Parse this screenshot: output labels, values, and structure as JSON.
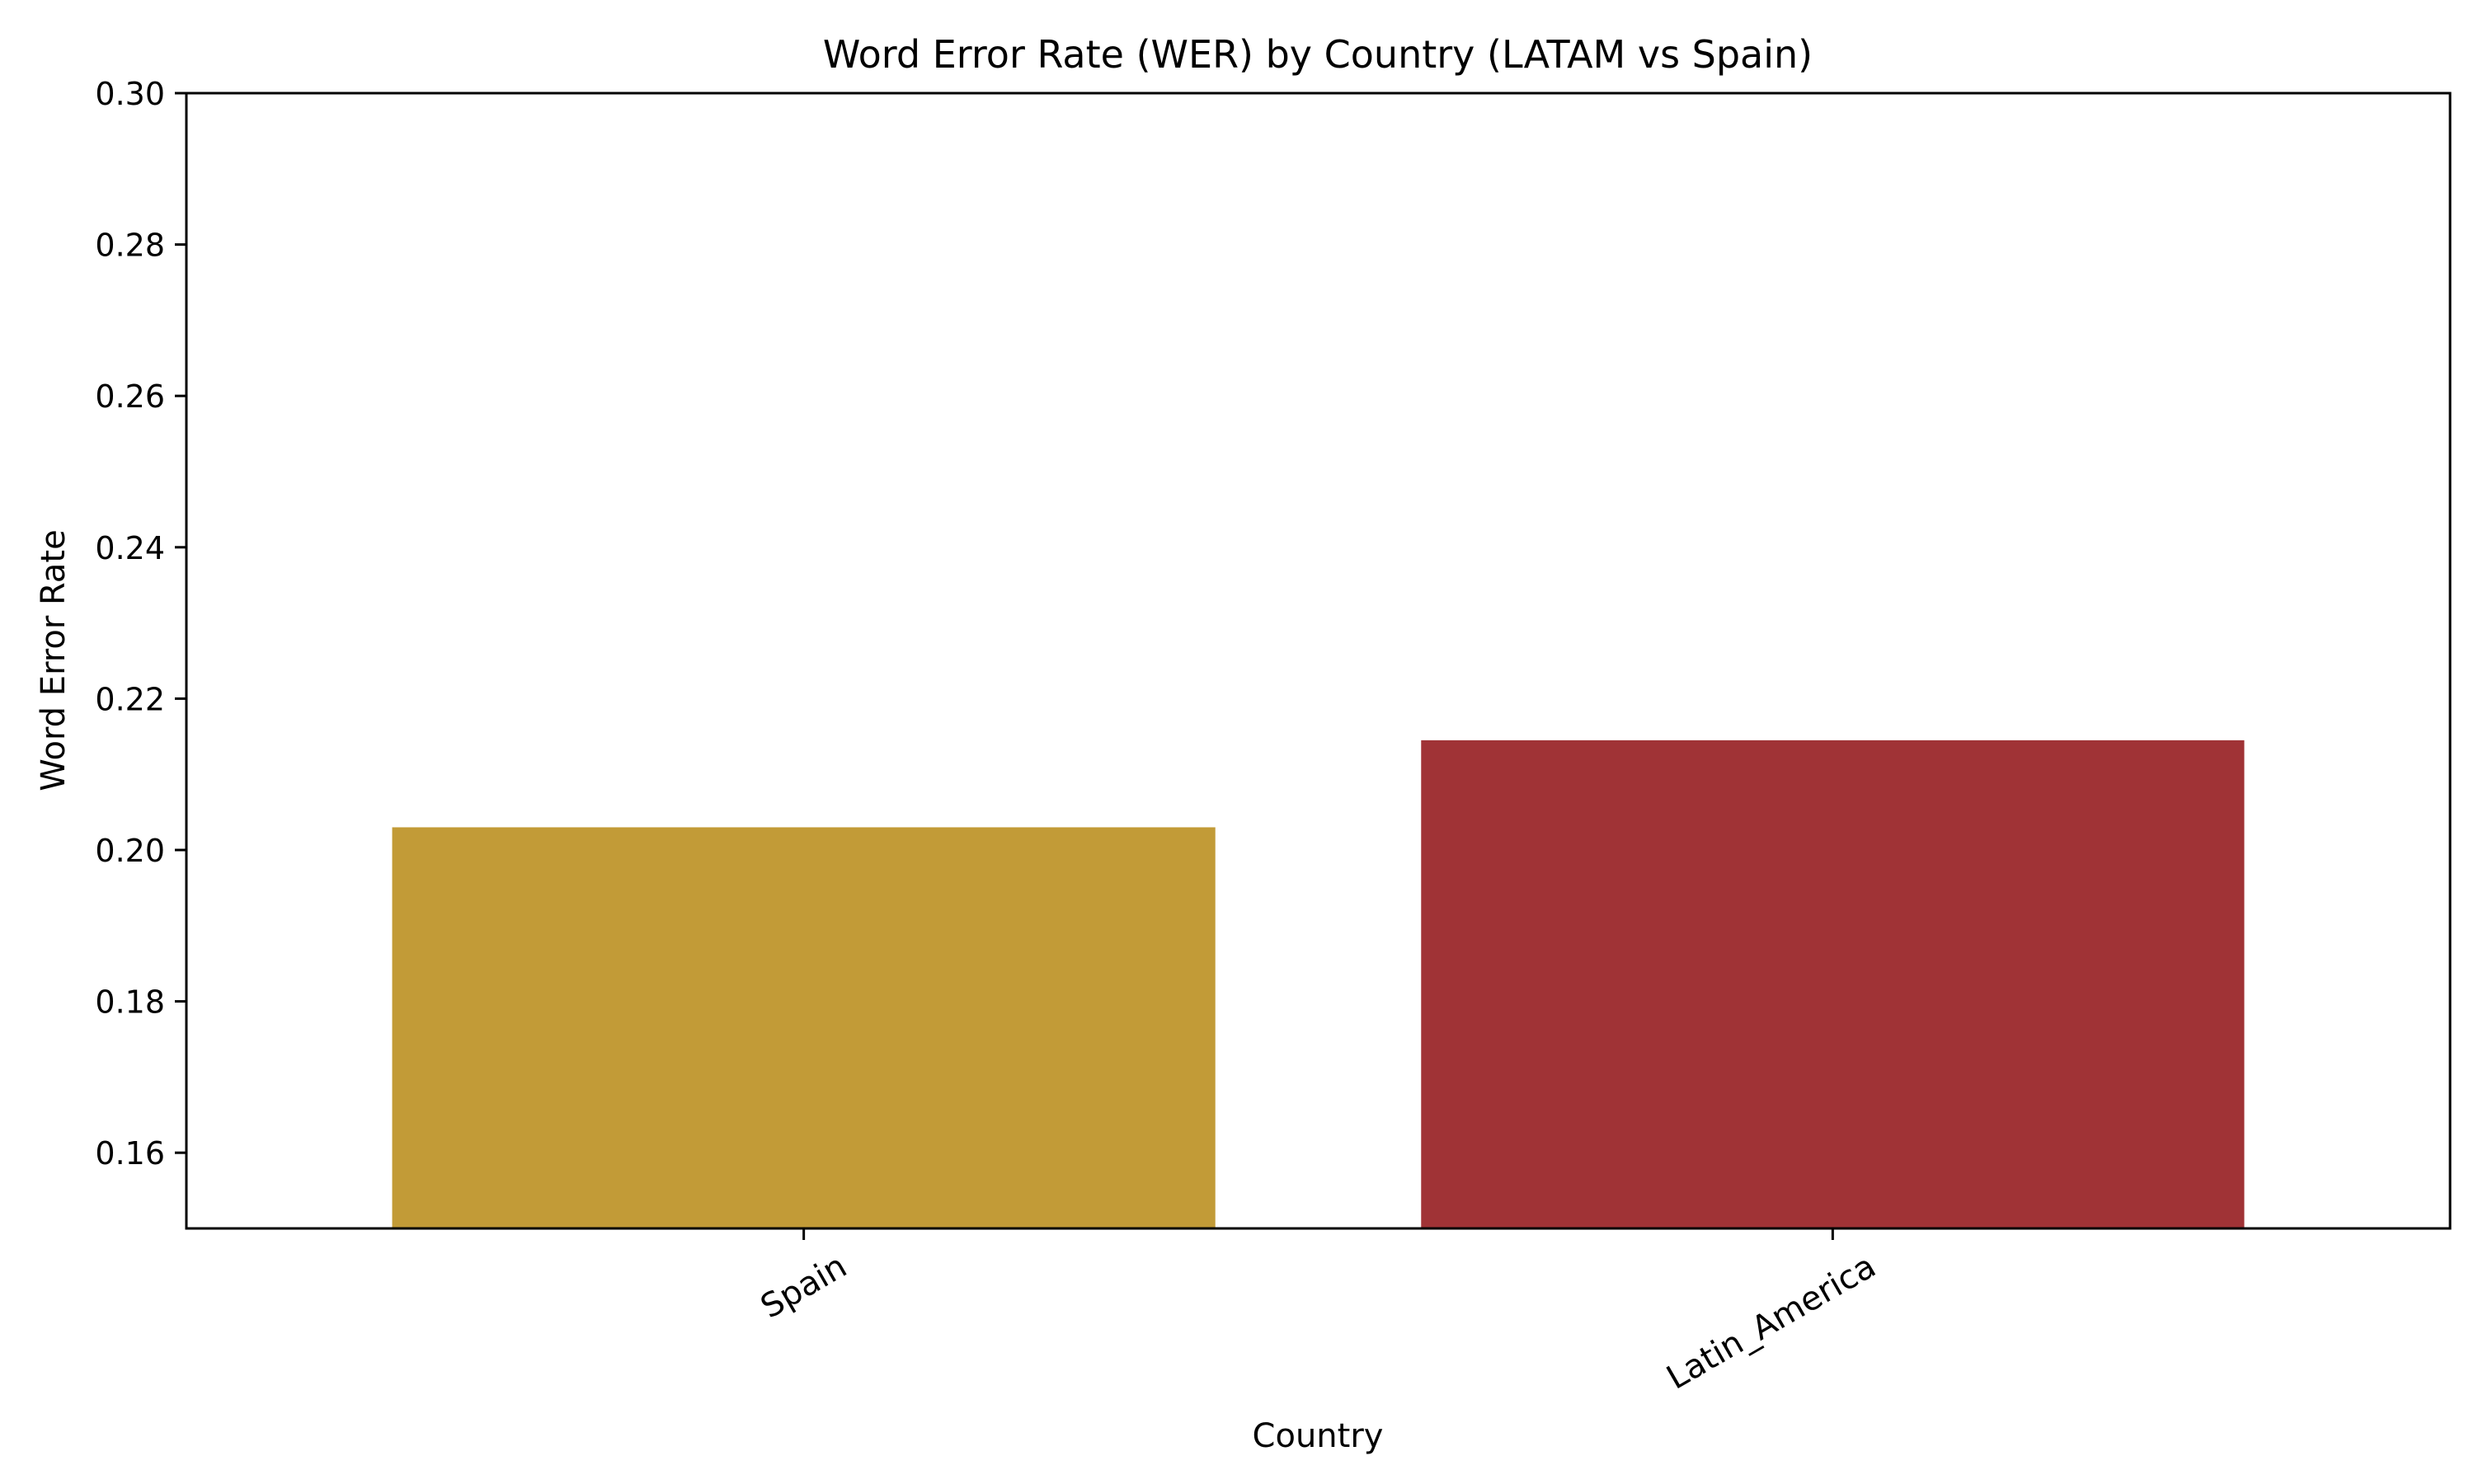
{
  "chart_data": {
    "type": "bar",
    "title": "Word Error Rate (WER) by Country (LATAM vs Spain)",
    "xlabel": "Country",
    "ylabel": "Word Error Rate",
    "categories": [
      "Spain",
      "Latin_America"
    ],
    "values": [
      0.203,
      0.2145
    ],
    "colors": [
      "#C29B37",
      "#A03336"
    ],
    "ylim": [
      0.15,
      0.3
    ],
    "yticks": [
      "0.16",
      "0.18",
      "0.20",
      "0.22",
      "0.24",
      "0.26",
      "0.28",
      "0.30"
    ],
    "grid": false,
    "legend": "none"
  }
}
